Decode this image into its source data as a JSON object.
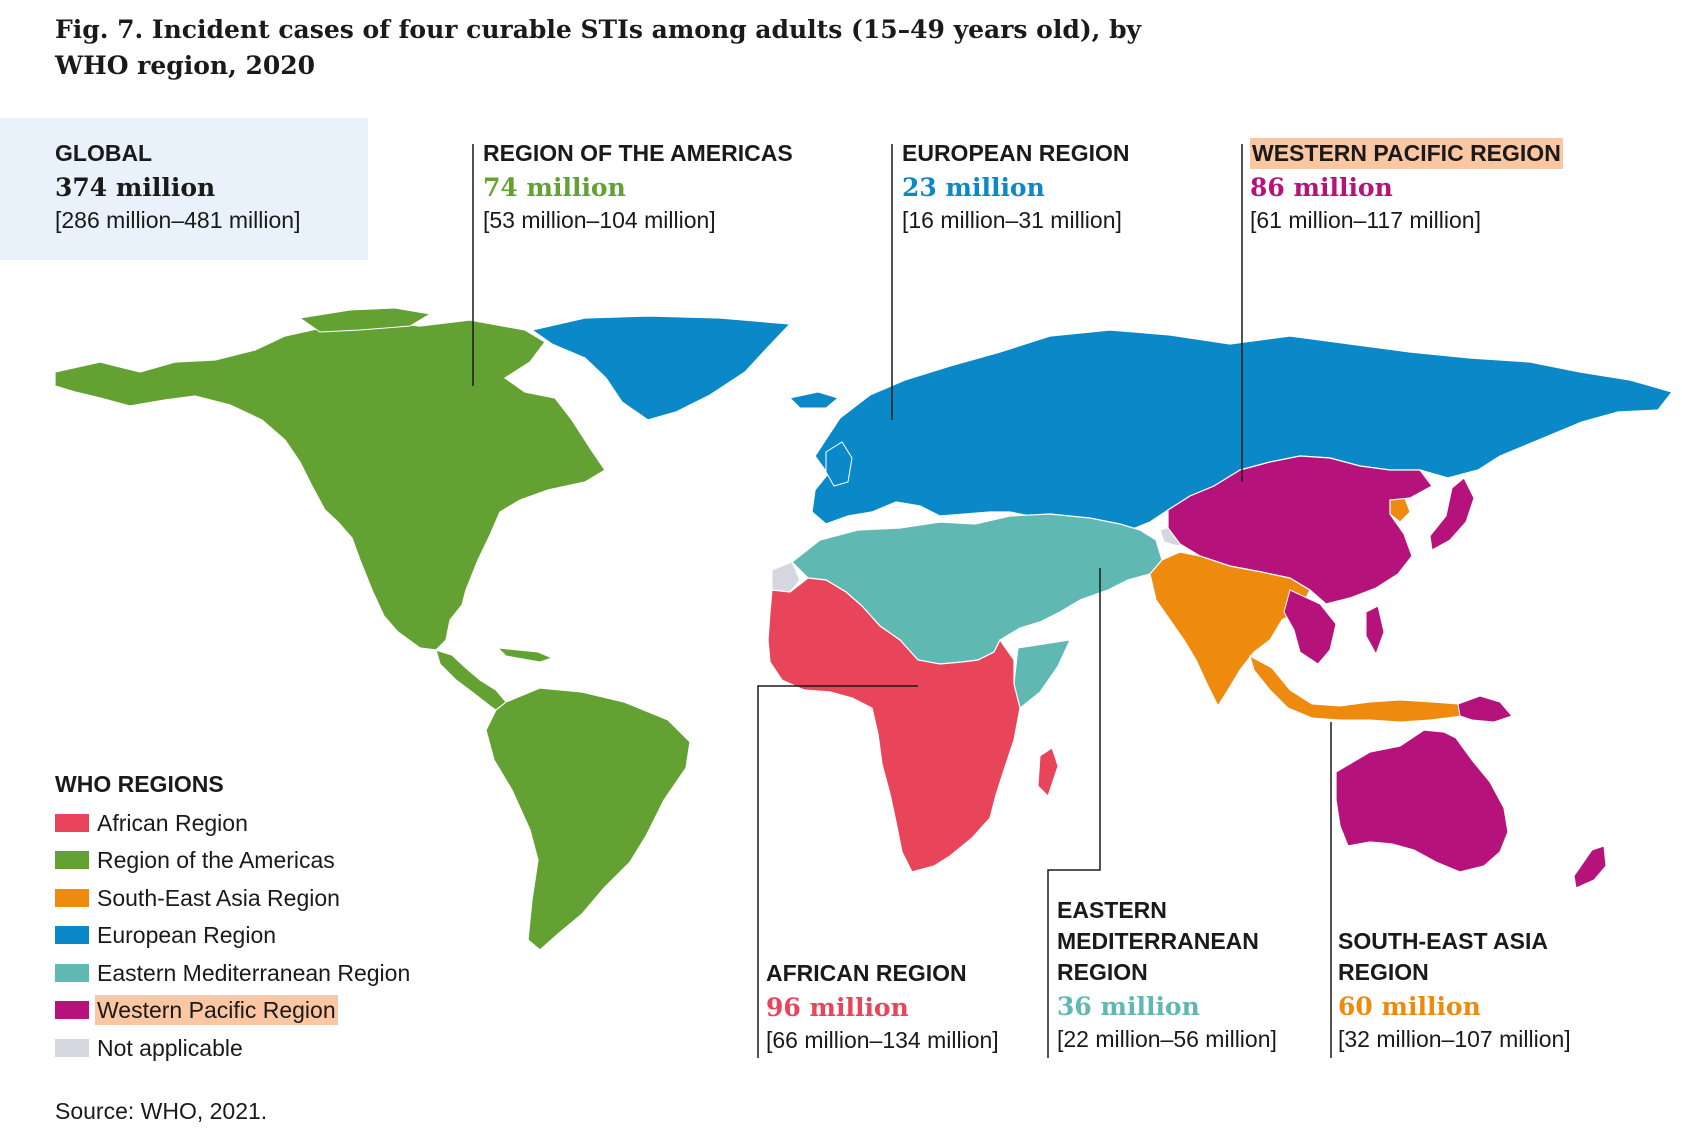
{
  "figure": {
    "title": "Fig. 7. Incident cases of four curable STIs among adults (15–49 years old), by WHO region, 2020",
    "source": "Source: WHO, 2021."
  },
  "colors": {
    "african": "#e8445a",
    "americas": "#63a132",
    "sea": "#ee8a0e",
    "european": "#0a88c8",
    "emr": "#5fb8b2",
    "wpr": "#b5127c",
    "na": "#d4d6e0",
    "highlight": "#fbc6a2"
  },
  "global": {
    "label": "GLOBAL",
    "value": "374 million",
    "range": "[286 million–481 million]"
  },
  "regions": {
    "americas": {
      "label": "REGION OF THE AMERICAS",
      "value": "74 million",
      "range": "[53 million–104 million]"
    },
    "european": {
      "label": "EUROPEAN REGION",
      "value": "23 million",
      "range": "[16 million–31 million]"
    },
    "wpr": {
      "label": "WESTERN PACIFIC REGION",
      "value": "86 million",
      "range": "[61 million–117 million]"
    },
    "african": {
      "label": "AFRICAN REGION",
      "value": "96 million",
      "range": "[66 million–134 million]"
    },
    "emr": {
      "label_line1": "EASTERN",
      "label_line2": "MEDITERRANEAN",
      "label_line3": "REGION",
      "value": "36 million",
      "range": "[22 million–56 million]"
    },
    "sea": {
      "label_line1": "SOUTH-EAST ASIA",
      "label_line2": "REGION",
      "value": "60 million",
      "range": "[32 million–107 million]"
    }
  },
  "legend": {
    "title": "WHO REGIONS",
    "items": [
      {
        "label": "African Region",
        "color": "#e8445a",
        "highlight": false
      },
      {
        "label": "Region of the Americas",
        "color": "#63a132",
        "highlight": false
      },
      {
        "label": "South-East Asia Region",
        "color": "#ee8a0e",
        "highlight": false
      },
      {
        "label": "European Region",
        "color": "#0a88c8",
        "highlight": false
      },
      {
        "label": "Eastern Mediterranean Region",
        "color": "#5fb8b2",
        "highlight": false
      },
      {
        "label": "Western Pacific Region",
        "color": "#b5127c",
        "highlight": true
      },
      {
        "label": "Not applicable",
        "color": "#d4d6e0",
        "highlight": false
      }
    ]
  }
}
